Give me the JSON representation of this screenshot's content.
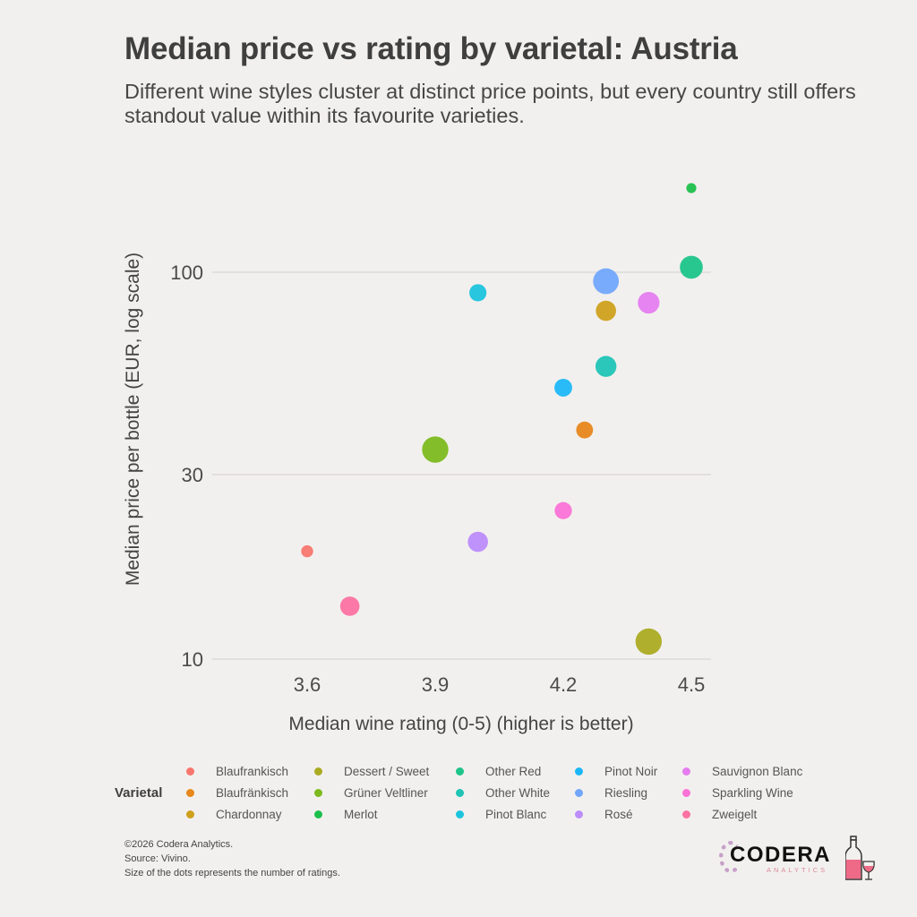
{
  "header": {
    "title": "Median price vs rating by varietal: Austria",
    "subtitle": "Different wine styles cluster at distinct price points, but every country still offers standout value within its favourite varieties."
  },
  "chart_data": {
    "type": "scatter",
    "title": "Median price vs rating by varietal: Austria",
    "subtitle": "Different wine styles cluster at distinct price points, but every country still offers standout value within its favourite varieties.",
    "xlabel": "Median wine rating (0-5) (higher is better)",
    "ylabel": "Median price per bottle (EUR, log scale)",
    "x_ticks": [
      3.6,
      3.9,
      4.2,
      4.5
    ],
    "y_ticks": [
      10,
      30,
      100
    ],
    "y_scale": "log",
    "xlim": [
      3.41,
      4.55
    ],
    "ylim": [
      10,
      190
    ],
    "grid": "horizontal",
    "legend_title": "Varietal",
    "legend_position": "bottom",
    "size_note": "Size of the dots represents the number of ratings.",
    "series": [
      {
        "name": "Blaufrankisch",
        "color": "#f8766d",
        "x": 3.6,
        "y": 19.0,
        "size": 1
      },
      {
        "name": "Blaufränkisch",
        "color": "#e7861b",
        "x": 4.25,
        "y": 39.1,
        "size": 3
      },
      {
        "name": "Chardonnay",
        "color": "#cfa01c",
        "x": 4.3,
        "y": 79.5,
        "size": 5
      },
      {
        "name": "Dessert / Sweet",
        "color": "#abab22",
        "x": 4.4,
        "y": 11.1,
        "size": 10
      },
      {
        "name": "Grüner Veltliner",
        "color": "#7cb91d",
        "x": 3.9,
        "y": 34.8,
        "size": 10
      },
      {
        "name": "Merlot",
        "color": "#1dbf4b",
        "x": 4.5,
        "y": 165,
        "size": 0.5
      },
      {
        "name": "Other Red",
        "color": "#1ec48a",
        "x": 4.5,
        "y": 103,
        "size": 7
      },
      {
        "name": "Other White",
        "color": "#1fc4b6",
        "x": 4.3,
        "y": 57.1,
        "size": 5.5
      },
      {
        "name": "Pinot Blanc",
        "color": "#1cc3dd",
        "x": 4.0,
        "y": 88.5,
        "size": 3.2
      },
      {
        "name": "Pinot Noir",
        "color": "#1db7f7",
        "x": 4.2,
        "y": 50.3,
        "size": 3.5
      },
      {
        "name": "Riesling",
        "color": "#72a6fc",
        "x": 4.3,
        "y": 94.8,
        "size": 9.5
      },
      {
        "name": "Rosé",
        "color": "#bc8cfb",
        "x": 4.0,
        "y": 20.1,
        "size": 5
      },
      {
        "name": "Sauvignon Blanc",
        "color": "#e57df0",
        "x": 4.4,
        "y": 83.4,
        "size": 6
      },
      {
        "name": "Sparkling Wine",
        "color": "#fb72d6",
        "x": 4.2,
        "y": 24.2,
        "size": 3.2
      },
      {
        "name": "Zweigelt",
        "color": "#fc72a2",
        "x": 3.7,
        "y": 13.7,
        "size": 4.5
      }
    ]
  },
  "footer": {
    "lines": [
      "©2026 Codera Analytics.",
      "Source: Vivino.",
      "Size of the dots represents the number of ratings."
    ]
  },
  "logo": {
    "name": "CODERA",
    "sub": "ANALYTICS"
  },
  "colors": {
    "background": "#f2f0ee",
    "grid": "#dcdad8",
    "text": "#444444"
  }
}
